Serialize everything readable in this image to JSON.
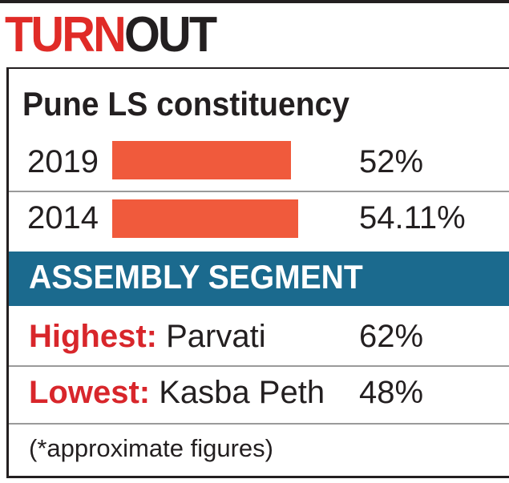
{
  "title": {
    "part1": "TURN",
    "part2": "OUT"
  },
  "chart_data": {
    "type": "bar",
    "orientation": "horizontal",
    "title": "Pune LS constituency",
    "categories": [
      "2019",
      "2014"
    ],
    "values": [
      52,
      54.11
    ],
    "value_labels": [
      "52%",
      "54.11%"
    ],
    "color": "#f05a3c",
    "grid": false
  },
  "segment": {
    "header": "ASSEMBLY SEGMENT",
    "highest": {
      "key": "Highest:",
      "name": "Parvati",
      "value": "62%"
    },
    "lowest": {
      "key": "Lowest:",
      "name": "Kasba Peth",
      "value": "48%"
    }
  },
  "footnote": "(*approximate figures)",
  "colors": {
    "accent_red": "#e02b27",
    "band_blue": "#1b6a8e",
    "bar": "#f05a3c"
  }
}
